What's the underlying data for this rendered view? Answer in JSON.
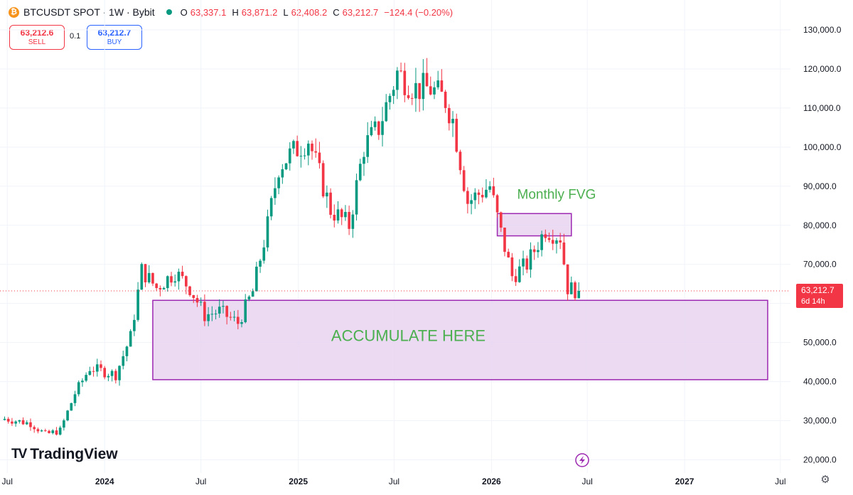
{
  "header": {
    "coin_symbol": "₿",
    "symbol": "BTCUSDT SPOT · 1W · Bybit",
    "ohlc": [
      {
        "k": "O",
        "v": "63,337.1"
      },
      {
        "k": "H",
        "v": "63,871.2"
      },
      {
        "k": "L",
        "v": "62,408.2"
      },
      {
        "k": "C",
        "v": "63,212.7"
      }
    ],
    "change": "−124.4 (−0.20%)"
  },
  "trade": {
    "sell_price": "63,212.6",
    "sell_label": "SELL",
    "spread": "0.1",
    "buy_price": "63,212.7",
    "buy_label": "BUY"
  },
  "logo": {
    "mark": "TV",
    "text": "TradingView"
  },
  "colors": {
    "up": "#089981",
    "down": "#f23645",
    "zone_fill": "#e7d3f0",
    "zone_stroke": "#9c27b0",
    "zone_label": "#4caf50",
    "grid": "#f0f3fa",
    "axis_text": "#131722"
  },
  "icons": {
    "settings": "gear-icon",
    "replay": "lightning-icon"
  },
  "chart_data": {
    "type": "candlestick",
    "title": "",
    "xlabel": "",
    "ylabel": "",
    "ylim": [
      17000,
      134000
    ],
    "y_ticks": [
      "130,000.0",
      "120,000.0",
      "110,000.0",
      "100,000.0",
      "90,000.0",
      "80,000.0",
      "70,000.0",
      "60,000.0",
      "50,000.0",
      "40,000.0",
      "30,000.0",
      "20,000.0"
    ],
    "y_tick_values": [
      130000,
      120000,
      110000,
      100000,
      90000,
      80000,
      70000,
      60000,
      50000,
      40000,
      30000,
      20000
    ],
    "x_ticks": [
      {
        "label": "Jul",
        "date": "2023-07-01",
        "bold": false
      },
      {
        "label": "2024",
        "date": "2024-01-01",
        "bold": true
      },
      {
        "label": "Jul",
        "date": "2024-07-01",
        "bold": false
      },
      {
        "label": "2025",
        "date": "2025-01-01",
        "bold": true
      },
      {
        "label": "Jul",
        "date": "2025-07-01",
        "bold": false
      },
      {
        "label": "2026",
        "date": "2026-01-01",
        "bold": true
      },
      {
        "label": "Jul",
        "date": "2026-07-01",
        "bold": false
      },
      {
        "label": "2027",
        "date": "2027-01-01",
        "bold": true
      },
      {
        "label": "Jul",
        "date": "2027-07-01",
        "bold": false
      }
    ],
    "x_range": [
      "2023-06-24",
      "2027-07-20"
    ],
    "candles": {
      "start_date": "2023-06-26",
      "interval_days": 7,
      "close_points": [
        {
          "date": "2023-06-26",
          "close": 30500
        },
        {
          "date": "2023-08-14",
          "close": 29300
        },
        {
          "date": "2023-09-11",
          "close": 26500
        },
        {
          "date": "2023-10-09",
          "close": 27500
        },
        {
          "date": "2023-11-06",
          "close": 37000
        },
        {
          "date": "2023-12-04",
          "close": 43500
        },
        {
          "date": "2024-01-22",
          "close": 41800
        },
        {
          "date": "2024-02-19",
          "close": 51500
        },
        {
          "date": "2024-03-11",
          "close": 68500
        },
        {
          "date": "2024-04-08",
          "close": 64000
        },
        {
          "date": "2024-05-13",
          "close": 68000
        },
        {
          "date": "2024-06-10",
          "close": 64000
        },
        {
          "date": "2024-07-08",
          "close": 57000
        },
        {
          "date": "2024-08-05",
          "close": 58000
        },
        {
          "date": "2024-09-09",
          "close": 55000
        },
        {
          "date": "2024-10-07",
          "close": 63000
        },
        {
          "date": "2024-11-04",
          "close": 80000
        },
        {
          "date": "2024-11-25",
          "close": 95000
        },
        {
          "date": "2024-12-16",
          "close": 98000
        },
        {
          "date": "2025-01-20",
          "close": 102000
        },
        {
          "date": "2025-03-03",
          "close": 84000
        },
        {
          "date": "2025-04-07",
          "close": 80000
        },
        {
          "date": "2025-05-05",
          "close": 100000
        },
        {
          "date": "2025-06-02",
          "close": 105000
        },
        {
          "date": "2025-07-07",
          "close": 119000
        },
        {
          "date": "2025-08-11",
          "close": 115000
        },
        {
          "date": "2025-09-08",
          "close": 115000
        },
        {
          "date": "2025-10-06",
          "close": 112000
        },
        {
          "date": "2025-10-20",
          "close": 107000
        },
        {
          "date": "2025-11-17",
          "close": 86000
        },
        {
          "date": "2025-12-29",
          "close": 90000
        },
        {
          "date": "2026-01-19",
          "close": 78000
        },
        {
          "date": "2026-02-09",
          "close": 67000
        },
        {
          "date": "2026-03-09",
          "close": 70000
        },
        {
          "date": "2026-04-13",
          "close": 79000
        },
        {
          "date": "2026-05-11",
          "close": 77000
        },
        {
          "date": "2026-05-25",
          "close": 64000
        },
        {
          "date": "2026-06-15",
          "close": 63212.7
        }
      ]
    },
    "current_price": {
      "value": 63212.7,
      "label": "63,212.7",
      "countdown": "6d 14h"
    },
    "annotations": [
      {
        "text": "Monthly FVG",
        "price_top": 83000,
        "price_bottom": 77300,
        "date_start": "2026-01-12",
        "date_end": "2026-06-01",
        "label_date": "2026-05-04",
        "label_price": 86800,
        "label_size": 19
      },
      {
        "text": "ACCUMULATE HERE",
        "price_top": 60800,
        "price_bottom": 40500,
        "date_start": "2024-04-01",
        "date_end": "2027-06-07",
        "label_date": "2025-07-28",
        "label_price": 50400,
        "label_size": 22
      }
    ]
  }
}
